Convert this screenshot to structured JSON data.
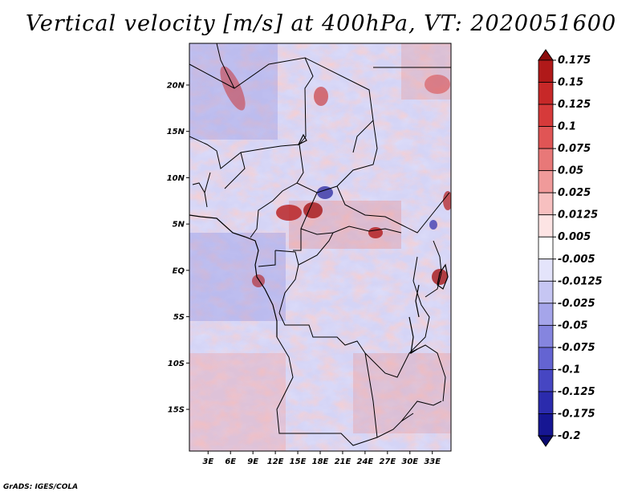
{
  "title": "Vertical velocity [m/s] at 400hPa, VT: 2020051600",
  "footer": "GrADS: IGES/COLA",
  "map": {
    "lat_labels": [
      "20N",
      "15N",
      "10N",
      "5N",
      "EQ",
      "5S",
      "10S",
      "15S"
    ],
    "lat_values": [
      20,
      15,
      10,
      5,
      0,
      -5,
      -10,
      -15
    ],
    "lon_labels": [
      "3E",
      "6E",
      "9E",
      "12E",
      "15E",
      "18E",
      "21E",
      "24E",
      "27E",
      "30E",
      "33E"
    ],
    "lon_values": [
      3,
      6,
      9,
      12,
      15,
      18,
      21,
      24,
      27,
      30,
      33
    ],
    "lat_range": [
      -19.5,
      24.5
    ],
    "lon_range": [
      0.5,
      35.5
    ],
    "field": "Vertical velocity",
    "units": "m/s",
    "level": "400hPa",
    "valid_time": "2020051600"
  },
  "colorbar": {
    "labels": [
      "0.175",
      "0.15",
      "0.125",
      "0.1",
      "0.075",
      "0.05",
      "0.025",
      "0.0125",
      "0.005",
      "-0.005",
      "-0.0125",
      "-0.025",
      "-0.05",
      "-0.075",
      "-0.1",
      "-0.125",
      "-0.175",
      "-0.2"
    ],
    "colors": [
      "#8c0d0d",
      "#b01919",
      "#c72828",
      "#d63a3a",
      "#e05555",
      "#e87878",
      "#f09a9a",
      "#f7c0c0",
      "#fde4e4",
      "#ffffff",
      "#e4e4fb",
      "#c6c6f3",
      "#a5a5ea",
      "#8585df",
      "#6464d2",
      "#4646c2",
      "#2b2bad",
      "#161693",
      "#0a0a70"
    ]
  }
}
